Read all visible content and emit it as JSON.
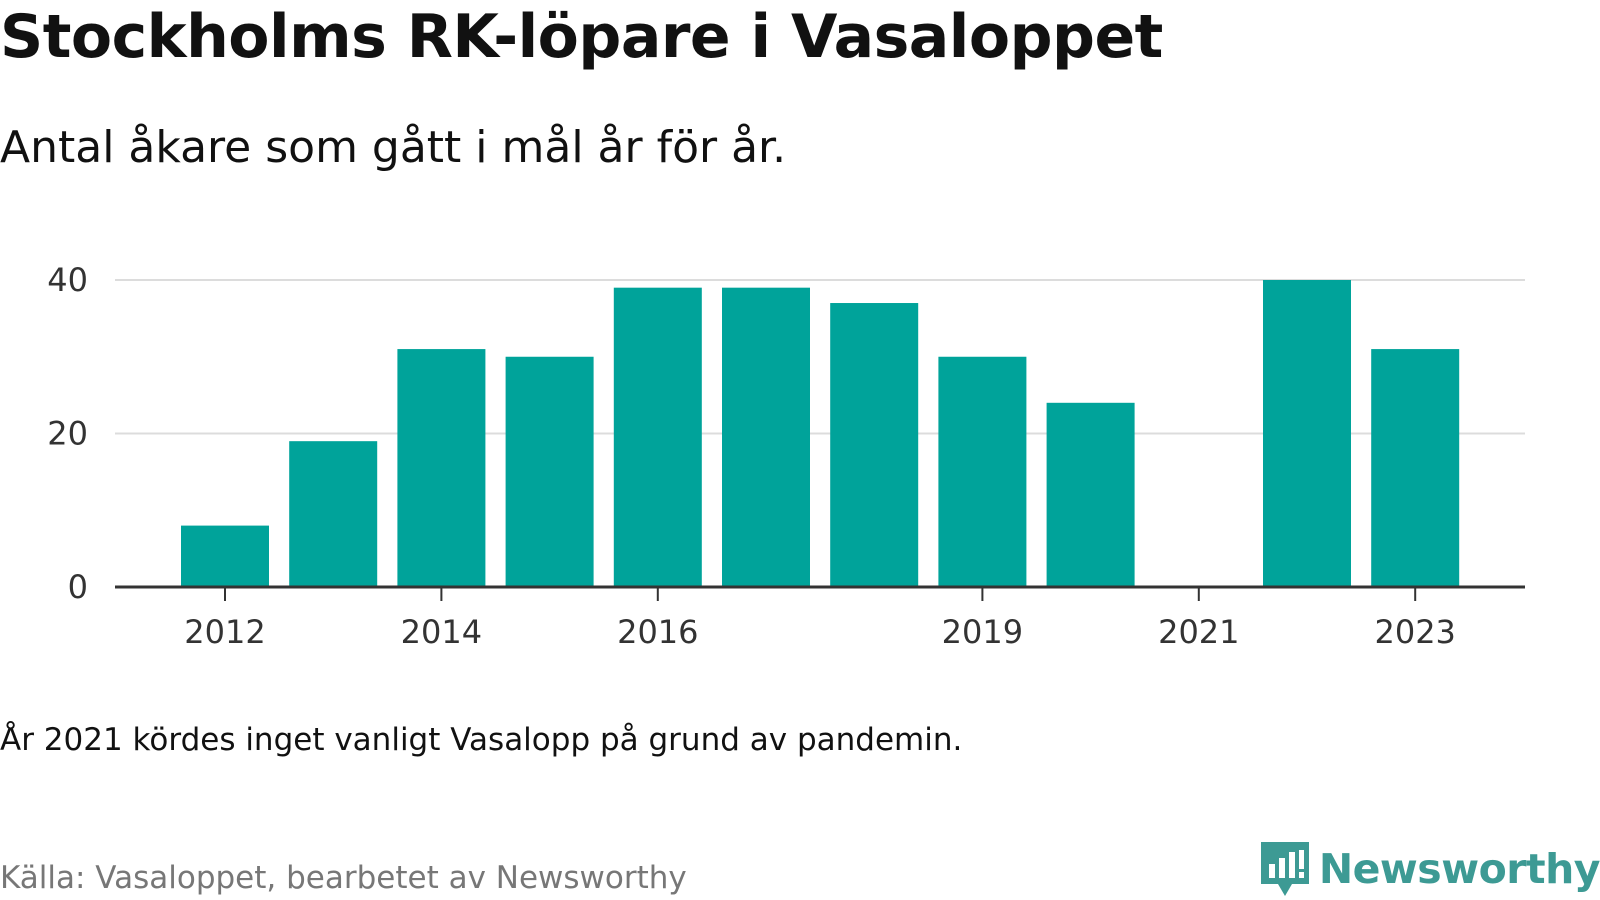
{
  "header": {
    "title": "Stockholms RK-löpare i Vasaloppet",
    "subtitle": "Antal åkare som gått i mål år för år."
  },
  "chart_data": {
    "type": "bar",
    "categories": [
      "2012",
      "2013",
      "2014",
      "2015",
      "2016",
      "2017",
      "2018",
      "2019",
      "2020",
      "2021",
      "2022",
      "2023"
    ],
    "values": [
      8,
      19,
      31,
      30,
      39,
      39,
      37,
      30,
      24,
      0,
      40,
      31
    ],
    "x_tick_labels": [
      "2012",
      "2014",
      "2016",
      "2019",
      "2021",
      "2023"
    ],
    "y_ticks": [
      0,
      20,
      40
    ],
    "ylim": [
      0,
      40
    ],
    "grid": "horizontal",
    "bar_color": "#00a39a"
  },
  "footer": {
    "note": "År 2021 kördes inget vanligt Vasalopp på grund av pandemin.",
    "source": "Källa: Vasaloppet, bearbetet av Newsworthy",
    "brand": "Newsworthy",
    "brand_icon": "newsworthy-logo-icon",
    "brand_color": "#3d9a94"
  }
}
